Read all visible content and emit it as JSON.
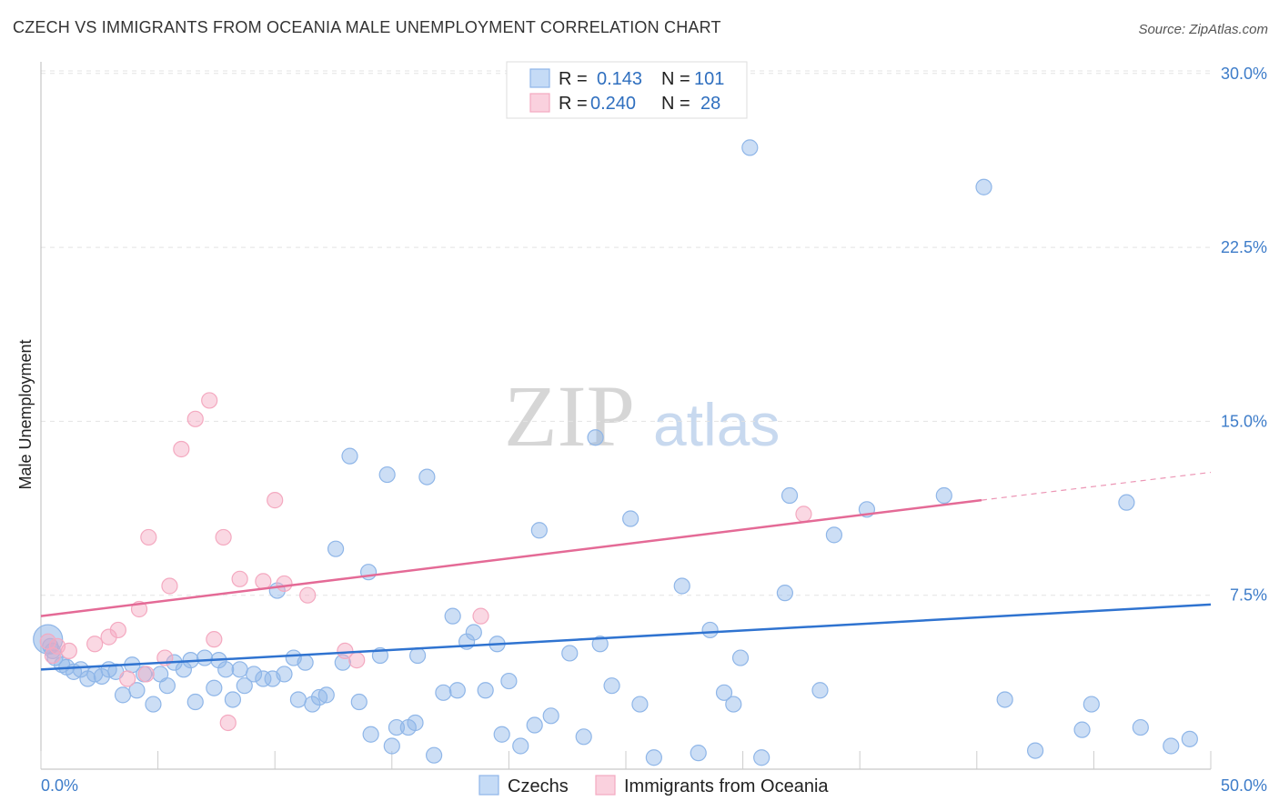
{
  "title": "CZECH VS IMMIGRANTS FROM OCEANIA MALE UNEMPLOYMENT CORRELATION CHART",
  "source": "Source: ZipAtlas.com",
  "watermark": {
    "zip": "ZIP",
    "atlas": "atlas"
  },
  "legend": {
    "rows": [
      {
        "r_label": "R =",
        "r_value": "0.143",
        "n_label": "N =",
        "n_value": "101"
      },
      {
        "r_label": "R =",
        "r_value": "0.240",
        "n_label": "N =",
        "n_value": "28"
      }
    ]
  },
  "chart_data": {
    "type": "scatter",
    "title": "CZECH VS IMMIGRANTS FROM OCEANIA MALE UNEMPLOYMENT CORRELATION CHART",
    "xlabel": "",
    "ylabel": "Male Unemployment",
    "xlim": [
      0,
      50
    ],
    "ylim": [
      0,
      30.5
    ],
    "x_tick_labels": [
      "0.0%",
      "50.0%"
    ],
    "y_ticks": [
      7.5,
      15.0,
      22.5,
      30.0
    ],
    "y_tick_labels": [
      "7.5%",
      "15.0%",
      "22.5%",
      "30.0%"
    ],
    "grid": true,
    "colors": {
      "czechs": "#8fb6e8",
      "czechs_line": "#2f73d0",
      "oceania": "#f4a9c0",
      "oceania_line": "#e46a96"
    },
    "series": [
      {
        "name": "Czechs",
        "trend": {
          "x0": 0,
          "y0": 4.3,
          "x1": 50,
          "y1": 7.1
        },
        "points": [
          [
            0.3,
            5.6
          ],
          [
            0.4,
            5.3
          ],
          [
            0.5,
            5.1
          ],
          [
            0.6,
            4.8
          ],
          [
            0.9,
            4.5
          ],
          [
            1.1,
            4.4
          ],
          [
            1.4,
            4.2
          ],
          [
            1.7,
            4.3
          ],
          [
            2.0,
            3.9
          ],
          [
            2.3,
            4.1
          ],
          [
            2.6,
            4.0
          ],
          [
            2.9,
            4.3
          ],
          [
            3.2,
            4.2
          ],
          [
            3.5,
            3.2
          ],
          [
            3.9,
            4.5
          ],
          [
            4.1,
            3.4
          ],
          [
            4.4,
            4.1
          ],
          [
            4.8,
            2.8
          ],
          [
            5.1,
            4.1
          ],
          [
            5.4,
            3.6
          ],
          [
            5.7,
            4.6
          ],
          [
            6.1,
            4.3
          ],
          [
            6.4,
            4.7
          ],
          [
            6.6,
            2.9
          ],
          [
            7.0,
            4.8
          ],
          [
            7.4,
            3.5
          ],
          [
            7.6,
            4.7
          ],
          [
            7.9,
            4.3
          ],
          [
            8.2,
            3.0
          ],
          [
            8.5,
            4.3
          ],
          [
            8.7,
            3.6
          ],
          [
            9.1,
            4.1
          ],
          [
            9.5,
            3.9
          ],
          [
            9.9,
            3.9
          ],
          [
            10.1,
            7.7
          ],
          [
            10.4,
            4.1
          ],
          [
            10.8,
            4.8
          ],
          [
            11.0,
            3.0
          ],
          [
            11.3,
            4.6
          ],
          [
            11.6,
            2.8
          ],
          [
            11.9,
            3.1
          ],
          [
            12.2,
            3.2
          ],
          [
            12.6,
            9.5
          ],
          [
            12.9,
            4.6
          ],
          [
            13.2,
            13.5
          ],
          [
            13.6,
            2.9
          ],
          [
            14.0,
            8.5
          ],
          [
            14.1,
            1.5
          ],
          [
            14.5,
            4.9
          ],
          [
            14.8,
            12.7
          ],
          [
            15.0,
            1.0
          ],
          [
            15.2,
            1.8
          ],
          [
            15.7,
            1.8
          ],
          [
            16.0,
            2.0
          ],
          [
            16.1,
            4.9
          ],
          [
            16.5,
            12.6
          ],
          [
            16.8,
            0.6
          ],
          [
            17.2,
            3.3
          ],
          [
            17.6,
            6.6
          ],
          [
            17.8,
            3.4
          ],
          [
            18.2,
            5.5
          ],
          [
            18.5,
            5.9
          ],
          [
            19.0,
            3.4
          ],
          [
            19.5,
            5.4
          ],
          [
            19.7,
            1.5
          ],
          [
            20.0,
            3.8
          ],
          [
            20.5,
            1.0
          ],
          [
            21.1,
            1.9
          ],
          [
            21.3,
            10.3
          ],
          [
            21.8,
            2.3
          ],
          [
            22.6,
            5.0
          ],
          [
            23.2,
            1.4
          ],
          [
            23.7,
            14.3
          ],
          [
            23.9,
            5.4
          ],
          [
            24.4,
            3.6
          ],
          [
            25.2,
            10.8
          ],
          [
            25.6,
            2.8
          ],
          [
            26.2,
            0.5
          ],
          [
            27.4,
            7.9
          ],
          [
            28.1,
            0.7
          ],
          [
            28.6,
            6.0
          ],
          [
            29.2,
            3.3
          ],
          [
            29.6,
            2.8
          ],
          [
            29.9,
            4.8
          ],
          [
            30.3,
            26.8
          ],
          [
            30.8,
            0.5
          ],
          [
            31.8,
            7.6
          ],
          [
            32.0,
            11.8
          ],
          [
            33.3,
            3.4
          ],
          [
            33.9,
            10.1
          ],
          [
            35.3,
            11.2
          ],
          [
            38.6,
            11.8
          ],
          [
            40.3,
            25.1
          ],
          [
            41.2,
            3.0
          ],
          [
            42.5,
            0.8
          ],
          [
            44.5,
            1.7
          ],
          [
            44.9,
            2.8
          ],
          [
            46.4,
            11.5
          ],
          [
            47.0,
            1.8
          ],
          [
            48.3,
            1.0
          ],
          [
            49.1,
            1.3
          ]
        ]
      },
      {
        "name": "Immigrants from Oceania",
        "trend": {
          "x0": 0,
          "y0": 6.6,
          "x1": 40.2,
          "y1": 11.6,
          "dash_x1": 50,
          "dash_y1": 12.8
        },
        "points": [
          [
            0.3,
            5.5
          ],
          [
            0.5,
            4.9
          ],
          [
            0.7,
            5.3
          ],
          [
            1.2,
            5.1
          ],
          [
            2.3,
            5.4
          ],
          [
            2.9,
            5.7
          ],
          [
            3.3,
            6.0
          ],
          [
            3.7,
            3.9
          ],
          [
            4.2,
            6.9
          ],
          [
            4.5,
            4.1
          ],
          [
            4.6,
            10.0
          ],
          [
            5.3,
            4.8
          ],
          [
            5.5,
            7.9
          ],
          [
            6.0,
            13.8
          ],
          [
            6.6,
            15.1
          ],
          [
            7.2,
            15.9
          ],
          [
            7.4,
            5.6
          ],
          [
            7.8,
            10.0
          ],
          [
            8.0,
            2.0
          ],
          [
            8.5,
            8.2
          ],
          [
            9.5,
            8.1
          ],
          [
            10.0,
            11.6
          ],
          [
            10.4,
            8.0
          ],
          [
            11.4,
            7.5
          ],
          [
            13.0,
            5.1
          ],
          [
            13.5,
            4.7
          ],
          [
            18.8,
            6.6
          ],
          [
            32.6,
            11.0
          ]
        ]
      }
    ]
  }
}
